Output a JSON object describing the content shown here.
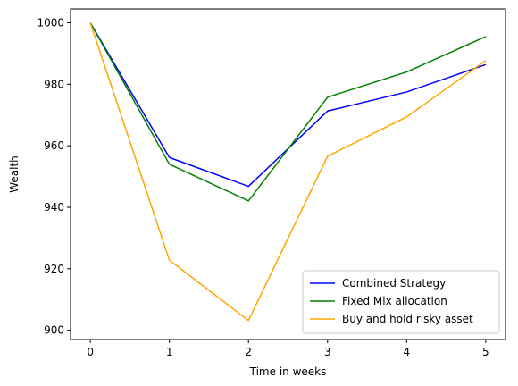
{
  "chart_data": {
    "type": "line",
    "title": "",
    "xlabel": "Time in weeks",
    "ylabel": "Wealth",
    "x": [
      0,
      1,
      2,
      3,
      4,
      5
    ],
    "xlim": [
      -0.25,
      5.25
    ],
    "ylim": [
      897,
      1004.5
    ],
    "xticks": [
      "0",
      "1",
      "2",
      "3",
      "4",
      "5"
    ],
    "yticks": [
      "900",
      "920",
      "940",
      "960",
      "980",
      "1000"
    ],
    "grid": false,
    "legend_position": "bottom-right",
    "series": [
      {
        "name": "Combined Strategy",
        "color": "#0000ff",
        "values": [
          1000,
          956.2,
          946.8,
          971.3,
          977.5,
          986.4
        ]
      },
      {
        "name": "Fixed Mix allocation",
        "color": "#008000",
        "values": [
          1000,
          954.0,
          942.1,
          975.8,
          984.0,
          995.5
        ]
      },
      {
        "name": "Buy and hold risky asset",
        "color": "#ffa500",
        "values": [
          1000,
          922.8,
          903.2,
          956.6,
          969.4,
          987.7
        ]
      }
    ]
  }
}
